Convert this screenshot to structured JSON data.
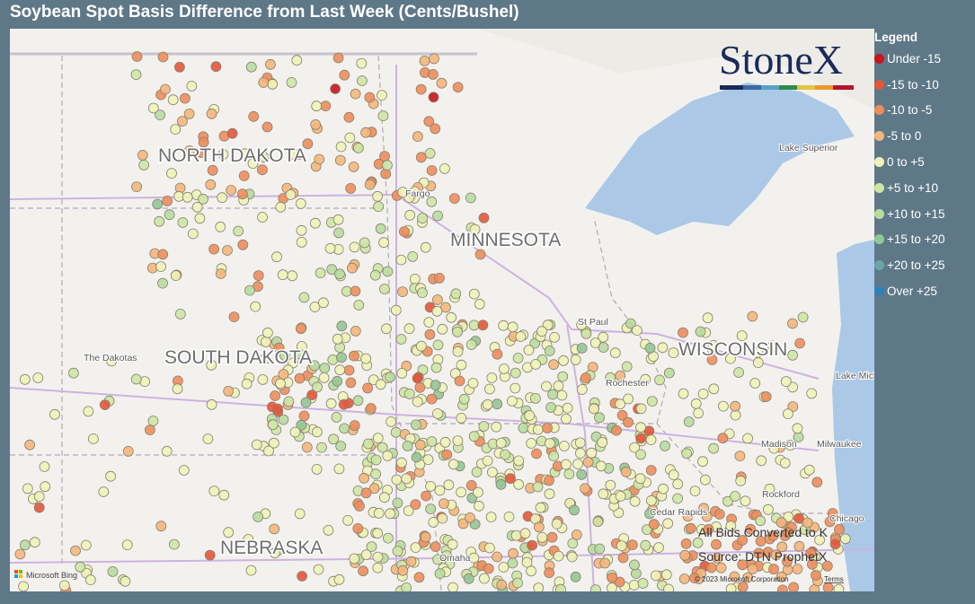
{
  "header": {
    "title": "Soybean Spot Basis Difference from Last Week (Cents/Bushel)"
  },
  "legend": {
    "title": "Legend",
    "items": [
      {
        "label": "Under -15",
        "color": "#c8151f"
      },
      {
        "label": "-15 to -10",
        "color": "#e4563a"
      },
      {
        "label": "-10 to -5",
        "color": "#ee8d5c"
      },
      {
        "label": "-5 to 0",
        "color": "#f4b67b"
      },
      {
        "label": "0 to +5",
        "color": "#eef3b8"
      },
      {
        "label": "+5 to +10",
        "color": "#cde6a4"
      },
      {
        "label": "+10 to +15",
        "color": "#b7dca0"
      },
      {
        "label": "+15 to +20",
        "color": "#93c795"
      },
      {
        "label": "+20 to +25",
        "color": "#68a7a6"
      },
      {
        "label": "Over +25",
        "color": "#2e80b9"
      }
    ]
  },
  "map": {
    "states": [
      "NORTH DAKOTA",
      "MINNESOTA",
      "SOUTH DAKOTA",
      "WISCONSIN",
      "NEBRASKA"
    ],
    "places": [
      "Fargo",
      "St Paul",
      "Lake Superior",
      "The Dakotas",
      "Rochester",
      "Madison",
      "Milwaukee",
      "Rockford",
      "Cedar Rapids",
      "Chicago",
      "Omaha",
      "Lake Michigan"
    ],
    "attribution": {
      "provider": "Microsoft Bing",
      "copyright": "© 2023 Microsoft Corporation",
      "terms": "Terms"
    }
  },
  "logo": "StoneX",
  "notes": [
    "All Bids Converted to K",
    "Source: DTN ProphetX"
  ]
}
